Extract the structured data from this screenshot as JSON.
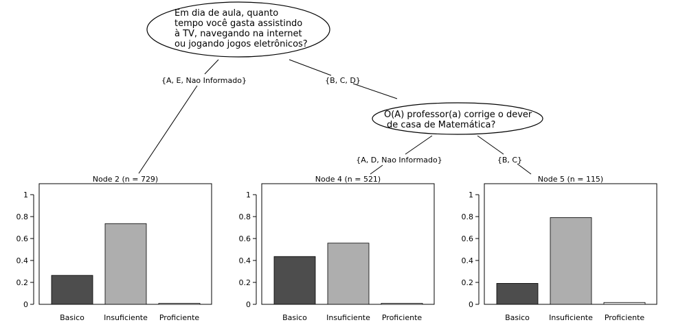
{
  "tree": {
    "root_question": [
      "Em dia de aula, quanto",
      "tempo você gasta assistindo",
      "à TV, navegando na internet",
      "ou jogando jogos eletrônicos?"
    ],
    "root_left_edge_label": "{A, E, Nao Informado}",
    "root_right_edge_label": "{B, C, D}",
    "inner_question": [
      "O(A) professor(a) corrige o dever",
      "de casa de Matemática?"
    ],
    "inner_left_edge_label": "{A, D, Nao Informado}",
    "inner_right_edge_label": "{B, C}",
    "colors": {
      "basico": "#4d4d4d",
      "insuficiente": "#aeaeae",
      "proficiente": "#ececec"
    }
  },
  "chart_data": [
    {
      "type": "bar",
      "title": "Node 2 (n = 729)",
      "categories": [
        "Basico",
        "Insuficiente",
        "Proficiente"
      ],
      "values": [
        0.264,
        0.736,
        0.0
      ],
      "ylim": [
        0,
        1
      ],
      "yticks": [
        "0",
        "0.2",
        "0.4",
        "0.6",
        "0.8",
        "1"
      ]
    },
    {
      "type": "bar",
      "title": "Node 4 (n = 521)",
      "categories": [
        "Basico",
        "Insuficiente",
        "Proficiente"
      ],
      "values": [
        0.436,
        0.558,
        0.006
      ],
      "ylim": [
        0,
        1
      ],
      "yticks": [
        "0",
        "0.2",
        "0.4",
        "0.6",
        "0.8",
        "1"
      ]
    },
    {
      "type": "bar",
      "title": "Node 5 (n = 115)",
      "categories": [
        "Basico",
        "Insuficiente",
        "Proficiente"
      ],
      "values": [
        0.191,
        0.791,
        0.017
      ],
      "ylim": [
        0,
        1
      ],
      "yticks": [
        "0",
        "0.2",
        "0.4",
        "0.6",
        "0.8",
        "1"
      ]
    }
  ]
}
